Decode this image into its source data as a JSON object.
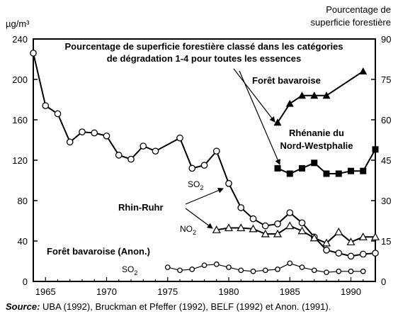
{
  "chart_data": {
    "type": "line",
    "left_axis_unit": "µg/m³",
    "right_axis_label_line1": "Pourcentage de",
    "right_axis_label_line2": "superficie forestière",
    "title_line1": "Pourcentage de superficie forestière classé dans les catégories",
    "title_line2": "de dégradation 1-4 pour toutes les essences",
    "x_ticks": [
      1965,
      1970,
      1975,
      1980,
      1985,
      1990
    ],
    "x_range": [
      1964,
      1992
    ],
    "y_left_ticks": [
      0,
      40,
      80,
      120,
      160,
      200,
      240
    ],
    "y_left_range": [
      0,
      240
    ],
    "y_right_ticks": [
      0,
      15,
      30,
      45,
      60,
      75,
      90
    ],
    "y_right_range": [
      0,
      90
    ],
    "series": [
      {
        "name": "SO2 Rhin-Ruhr",
        "axis": "left",
        "marker": "circle",
        "x": [
          1964,
          1965,
          1966,
          1967,
          1968,
          1969,
          1970,
          1971,
          1972,
          1973,
          1974,
          1976,
          1977,
          1978,
          1979,
          1980,
          1981,
          1982,
          1983,
          1984,
          1985,
          1986,
          1987,
          1988,
          1989,
          1990,
          1991,
          1992
        ],
        "y": [
          226,
          174,
          166,
          138,
          148,
          147,
          144,
          125,
          121,
          134,
          129,
          142,
          112,
          115,
          129,
          97,
          73,
          62,
          55,
          57,
          68,
          58,
          44,
          31,
          28,
          25,
          27,
          28
        ]
      },
      {
        "name": "NO2 Rhin-Ruhr",
        "axis": "left",
        "marker": "triangle-open",
        "x": [
          1979,
          1980,
          1981,
          1982,
          1983,
          1984,
          1985,
          1986,
          1987,
          1988,
          1989,
          1990,
          1991,
          1992
        ],
        "y": [
          51,
          53,
          53,
          52,
          47,
          47,
          55,
          50,
          43,
          38,
          49,
          39,
          44,
          44
        ]
      },
      {
        "name": "SO2 Forêt bavaroise (Anon.)",
        "axis": "left",
        "marker": "circle",
        "x": [
          1975,
          1976,
          1977,
          1978,
          1979,
          1980,
          1981,
          1982,
          1983,
          1984,
          1985,
          1986,
          1987,
          1988,
          1989,
          1990,
          1991
        ],
        "y": [
          14,
          11,
          12,
          16,
          17,
          14,
          11,
          10,
          11,
          12,
          18,
          14,
          11,
          9,
          10,
          10,
          10
        ]
      },
      {
        "name": "Forêt bavaroise",
        "axis": "right",
        "marker": "triangle-filled",
        "x": [
          1984,
          1985,
          1986,
          1987,
          1988,
          1991
        ],
        "y": [
          59,
          66,
          69,
          69,
          69,
          78
        ]
      },
      {
        "name": "Rhénanie du Nord-Westphalie",
        "axis": "right",
        "marker": "square-filled",
        "x": [
          1984,
          1985,
          1986,
          1987,
          1988,
          1989,
          1990,
          1991,
          1992
        ],
        "y": [
          42,
          40,
          42,
          44,
          40,
          40,
          41,
          41,
          49
        ]
      }
    ],
    "annotations": {
      "baviere_forest": "Forêt bavaroise",
      "rhenanie_line1": "Rhénanie du",
      "rhenanie_line2": "Nord-Westphalie",
      "so2_main": "SO",
      "so2_sub": "2",
      "rhin_ruhr": "Rhin-Ruhr",
      "no2_main": "NO",
      "no2_sub": "2",
      "baviere_anon": "Forêt bavaroise (Anon.)",
      "so2_bottom_main": "SO",
      "so2_bottom_sub": "2"
    },
    "legend": "none",
    "grid": false
  },
  "source": {
    "prefix": "Source:",
    "text": " UBA (1992), Bruckman et Pfeffer (1992), BELF (1992) et Anon. (1991)."
  }
}
